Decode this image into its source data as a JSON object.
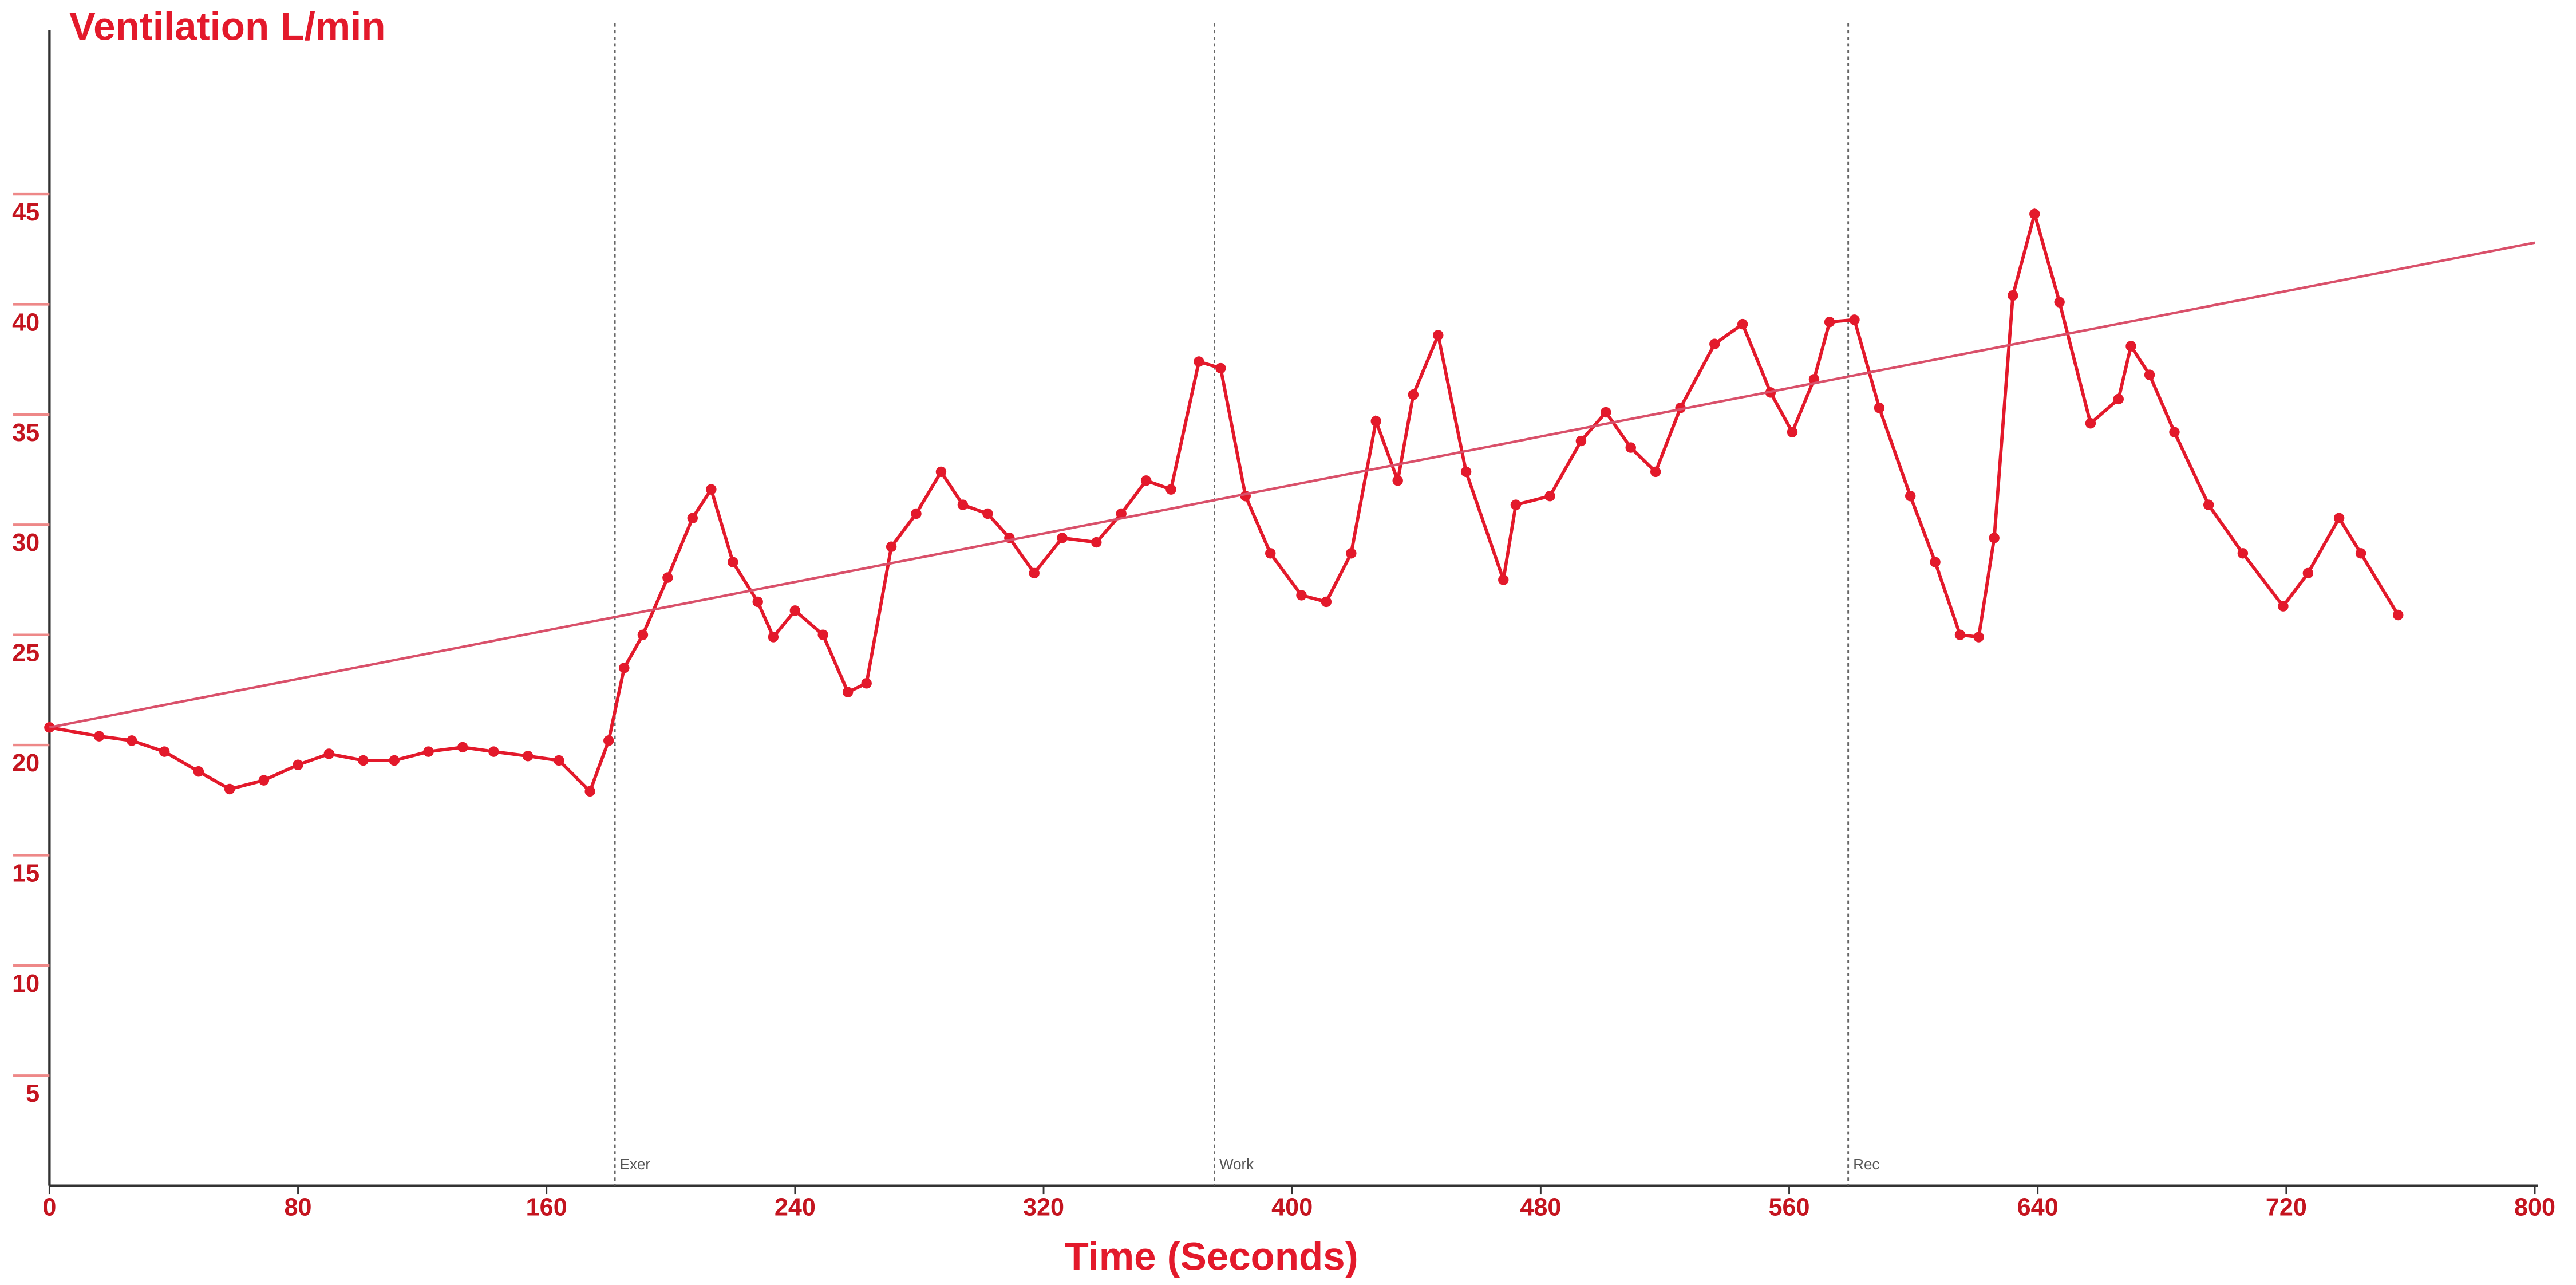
{
  "chart_data": {
    "type": "line",
    "title": "Ventilation L/min",
    "x_label": "Time (Seconds)",
    "xlim": [
      0,
      800
    ],
    "xticks": [
      0,
      80,
      160,
      240,
      320,
      400,
      480,
      560,
      640,
      720,
      800
    ],
    "ylim": [
      0,
      52
    ],
    "yticks": [
      5,
      10,
      15,
      20,
      25,
      30,
      35,
      40,
      45
    ],
    "grid": false,
    "series": [
      {
        "name": "Ventilation",
        "color": "#e3192b",
        "markers": true,
        "x": [
          0,
          16,
          26.5,
          37,
          48,
          58,
          69,
          80,
          90,
          101,
          111,
          122,
          133,
          143,
          154,
          164,
          174,
          180,
          185,
          191,
          199,
          207,
          213,
          220,
          228,
          233,
          240,
          249,
          257,
          263,
          271,
          279,
          287,
          294,
          302,
          309,
          317,
          326,
          337,
          345,
          353,
          361,
          370,
          377,
          385,
          393,
          403,
          411,
          419,
          427,
          434,
          439,
          447,
          456,
          468,
          472,
          483,
          493,
          501,
          509,
          517,
          525,
          536,
          545,
          554,
          561,
          568,
          573,
          581,
          589,
          599,
          607,
          615,
          621,
          626,
          632,
          639,
          647,
          657,
          666,
          670,
          676,
          684,
          695,
          706,
          719,
          727,
          737,
          744,
          756
        ],
        "values": [
          20.8,
          20.4,
          20.2,
          19.7,
          18.8,
          18.0,
          18.4,
          19.1,
          19.6,
          19.3,
          19.3,
          19.7,
          19.9,
          19.7,
          19.5,
          19.3,
          17.9,
          20.2,
          23.5,
          25,
          27.6,
          30.3,
          31.6,
          28.3,
          26.5,
          24.9,
          26.1,
          25,
          22.4,
          22.8,
          29,
          30.5,
          32.4,
          30.9,
          30.5,
          29.4,
          27.8,
          29.4,
          29.2,
          30.5,
          32,
          31.6,
          37.4,
          37.1,
          31.3,
          28.7,
          26.8,
          26.5,
          28.7,
          34.7,
          32,
          35.9,
          38.6,
          32.4,
          27.5,
          30.9,
          31.3,
          33.8,
          35.1,
          33.5,
          32.4,
          35.3,
          38.2,
          39.1,
          36,
          34.2,
          36.6,
          39.2,
          39.3,
          35.3,
          31.3,
          28.3,
          25,
          24.9,
          29.4,
          40.4,
          44.1,
          40.1,
          34.6,
          35.7,
          38.1,
          36.8,
          34.2,
          30.9,
          28.7,
          26.3,
          27.8,
          30.3,
          28.7,
          25.9
        ]
      },
      {
        "name": "Trend",
        "color": "#d9506a",
        "markers": false,
        "x": [
          0,
          800
        ],
        "values": [
          20.8,
          42.8
        ]
      }
    ],
    "phase_markers": [
      {
        "x": 182,
        "label": "Exer"
      },
      {
        "x": 375,
        "label": "Work"
      },
      {
        "x": 579,
        "label": "Rec"
      }
    ]
  }
}
